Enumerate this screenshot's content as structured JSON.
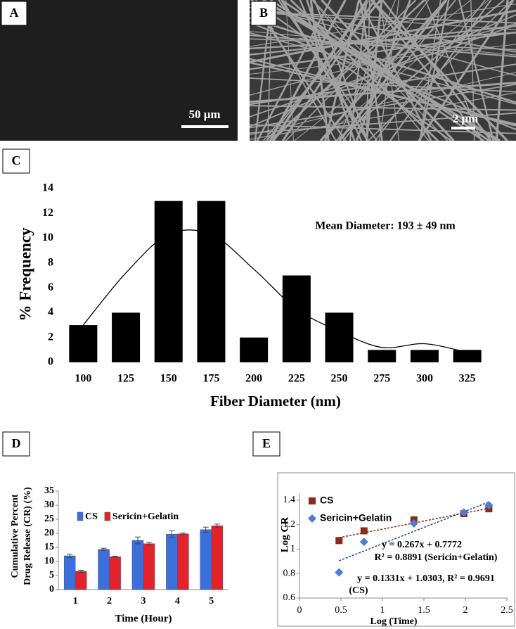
{
  "panels": [
    {
      "label": "A",
      "scale_bar": "50 μm"
    },
    {
      "label": "B",
      "scale_bar": "2 μm"
    }
  ],
  "chart_data": [
    {
      "type": "bar",
      "label": "C",
      "xlabel": "Fiber Diameter (nm)",
      "ylabel": "% Frequency",
      "annotation": "Mean Diameter: 193 ± 49 nm",
      "categories": [
        100,
        125,
        150,
        175,
        200,
        225,
        250,
        275,
        300,
        325
      ],
      "values": [
        3,
        4,
        13,
        13,
        2,
        7,
        4,
        1,
        1,
        1
      ],
      "color": "#000000",
      "curve": {
        "x": [
          100,
          125,
          150,
          175,
          200,
          225,
          250,
          275,
          300,
          325
        ],
        "values": [
          3,
          7.2,
          10.3,
          10.3,
          7.5,
          4.3,
          2.5,
          1.2,
          1.5,
          0.8
        ]
      },
      "ylim": [
        0,
        14
      ],
      "yticks": [
        0,
        2,
        4,
        6,
        8,
        10,
        12,
        14
      ]
    },
    {
      "type": "grouped_bar",
      "label": "D",
      "xlabel": "Time (Hour)",
      "ylabel": [
        "Cumulative Percent",
        "Drug Release (CR) (%)"
      ],
      "categories": [
        "1",
        "2",
        "3",
        "4",
        "5"
      ],
      "series": [
        {
          "name": "CS",
          "color": "#3b6fdc",
          "values": [
            12,
            14.3,
            17.5,
            19.7,
            21.3
          ],
          "errors": [
            0.6,
            0.4,
            1.2,
            1.2,
            0.9
          ]
        },
        {
          "name": "Sericin+Gelatin",
          "color": "#e3222b",
          "values": [
            6.5,
            11.7,
            16.3,
            19.8,
            22.7
          ],
          "errors": [
            0.4,
            0.2,
            0.5,
            0.3,
            0.6
          ]
        }
      ],
      "ylim": [
        0,
        35
      ],
      "yticks": [
        0,
        5,
        10,
        15,
        20,
        25,
        30,
        35
      ]
    },
    {
      "type": "scatter",
      "label": "E",
      "xlabel": "Log (Time)",
      "ylabel": "Log CR",
      "series": [
        {
          "name": "CS",
          "color": "#8b2a1e",
          "marker": "square",
          "x": [
            0.477,
            0.778,
            1.38,
            1.982,
            2.283
          ],
          "values": [
            1.07,
            1.15,
            1.24,
            1.29,
            1.33
          ],
          "trend": {
            "x": [
              0.477,
              2.283
            ],
            "values": [
              1.094,
              1.334
            ]
          }
        },
        {
          "name": "Sericin+Gelatin",
          "color": "#4a7fd0",
          "marker": "diamond",
          "x": [
            0.477,
            0.778,
            1.38,
            1.982,
            2.283
          ],
          "values": [
            0.81,
            1.06,
            1.21,
            1.3,
            1.36
          ],
          "trend": {
            "x": [
              0.477,
              2.283
            ],
            "values": [
              0.905,
              1.386
            ]
          }
        }
      ],
      "annotations": [
        "y = 0.267x + 0.7772",
        "R² = 0.8891 (Sericin+Gelatin)",
        "y = 0.1331x + 1.0303, R² = 0.9691",
        "(CS)"
      ],
      "xlim": [
        0,
        2.5
      ],
      "xticks": [
        0,
        0.5,
        1,
        1.5,
        2,
        2.5
      ],
      "ylim": [
        0.6,
        1.4
      ],
      "yticks": [
        0.6,
        0.8,
        1,
        1.2,
        1.4
      ]
    }
  ]
}
